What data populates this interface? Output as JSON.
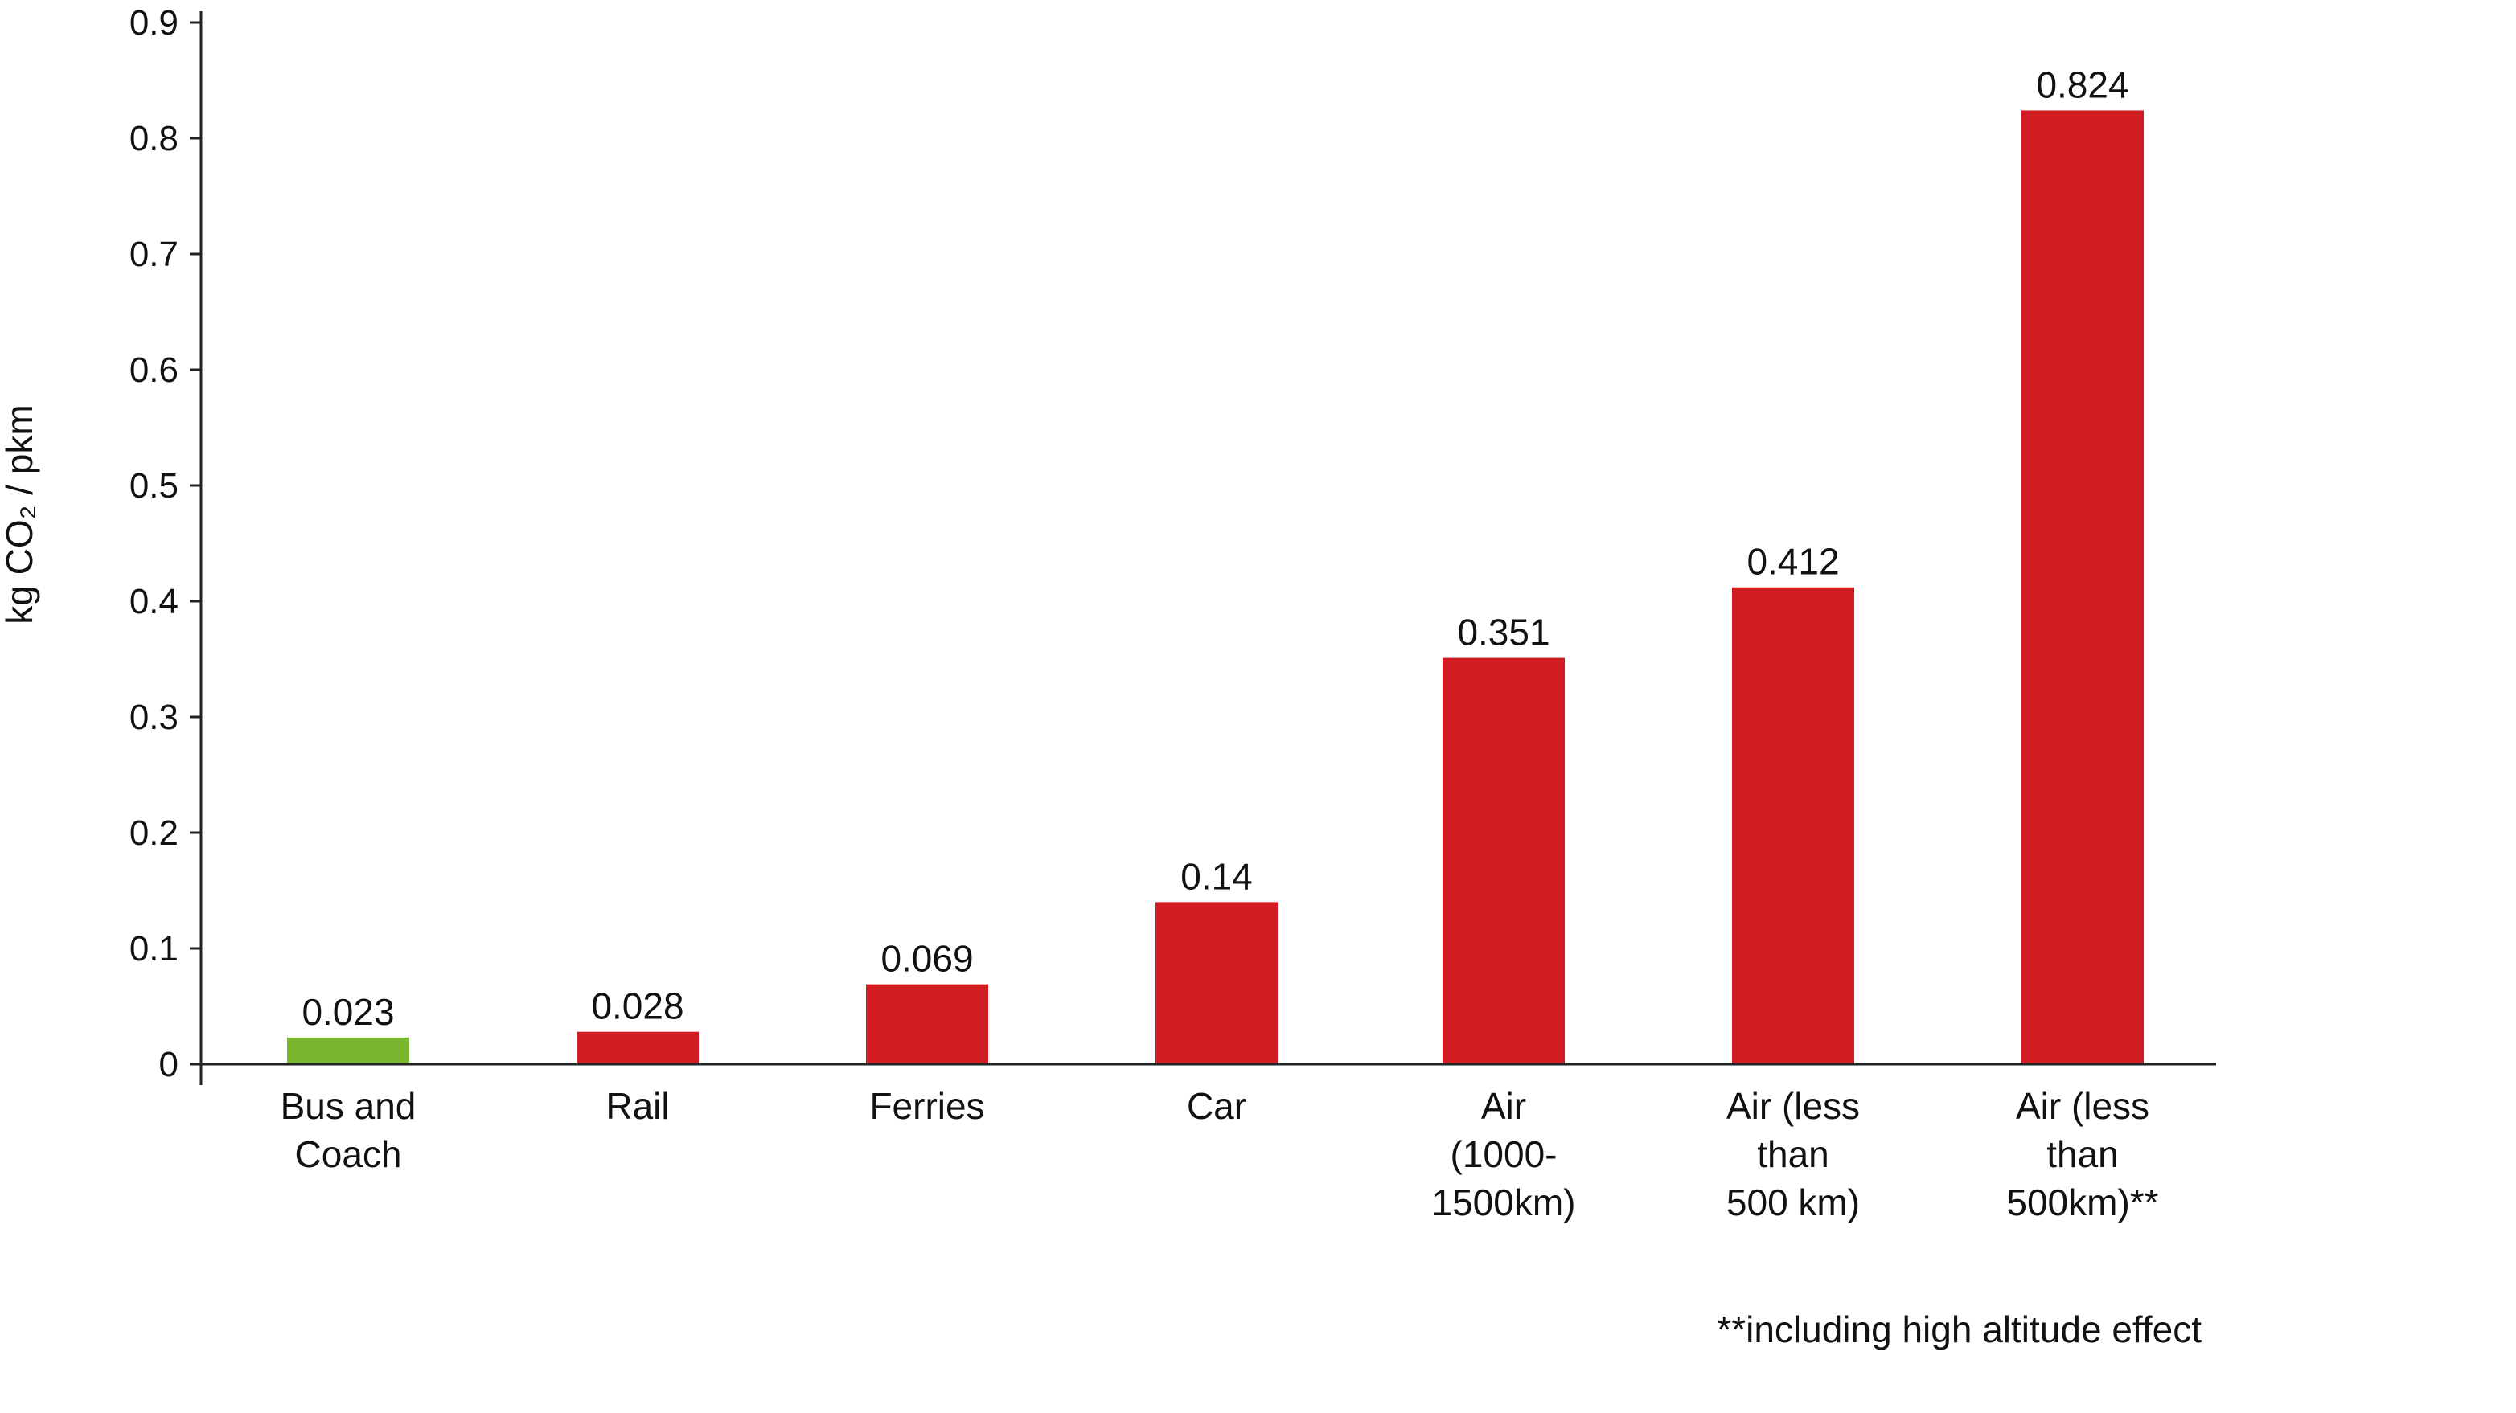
{
  "chart_data": {
    "type": "bar",
    "categories": [
      [
        "Bus and",
        "Coach"
      ],
      [
        "Rail"
      ],
      [
        "Ferries"
      ],
      [
        "Car"
      ],
      [
        "Air",
        "(1000-",
        "1500km)"
      ],
      [
        "Air (less",
        "than",
        "500 km)"
      ],
      [
        "Air (less",
        "than",
        "500km)**"
      ]
    ],
    "values": [
      0.023,
      0.028,
      0.069,
      0.14,
      0.351,
      0.412,
      0.824
    ],
    "value_labels": [
      "0.023",
      "0.028",
      "0.069",
      "0.14",
      "0.351",
      "0.412",
      "0.824"
    ],
    "bar_colors": [
      "#7ab730",
      "#d11d22",
      "#d11d22",
      "#d11d22",
      "#d11d22",
      "#d11d22",
      "#d11d22"
    ],
    "ylabel": "kg CO₂ / pkm",
    "ylim": [
      0,
      0.9
    ],
    "yticks": [
      "0",
      "0.1",
      "0.2",
      "0.3",
      "0.4",
      "0.5",
      "0.6",
      "0.7",
      "0.8",
      "0.9"
    ],
    "grid": false,
    "legend": "none",
    "footnote": "**including high altitude effect"
  }
}
